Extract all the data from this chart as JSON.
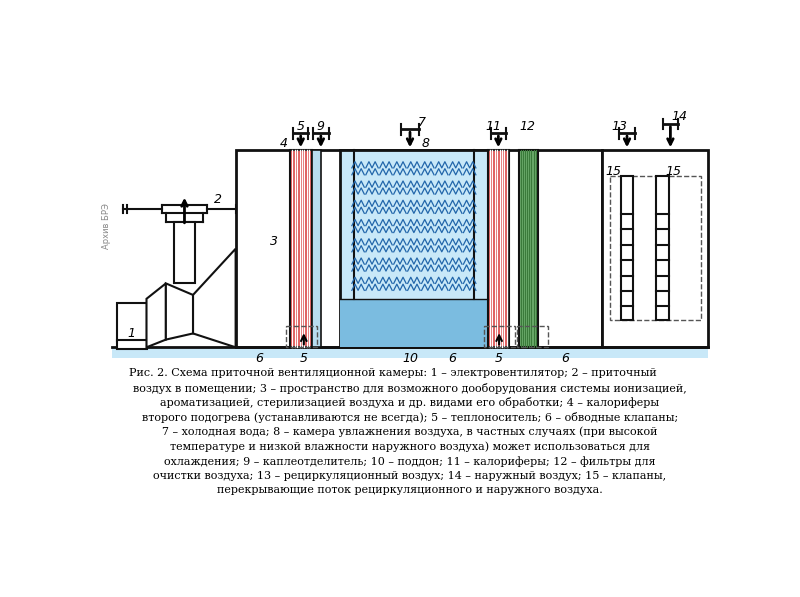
{
  "bg_color": "#ffffff",
  "caption_lines": [
    "Рис. 2. Схема приточной вентиляционной камеры: 1 – электровентилятор; 2 – приточный",
    "воздух в помещении; 3 – пространство для возможного дооборудования системы ионизацией,",
    "ароматизацией, стерилизацией воздуха и др. видами его обработки; 4 – калориферы",
    "второго подогрева (устанавливаются не всегда); 5 – теплоноситель; 6 – обводные клапаны;",
    "7 – холодная вода; 8 – камера увлажнения воздуха, в частных случаях (при высокой",
    "температуре и низкой влажности наружного воздуха) может использоваться для",
    "охлаждения; 9 – каплеотделитель; 10 – поддон; 11 – калориферы; 12 – фильтры для",
    "очистки воздуха; 13 – рециркуляционный воздух; 14 – наружный воздух; 15 – клапаны,",
    "перекрывающие поток рециркуляционного и наружного воздуха."
  ],
  "red_color": "#d94040",
  "light_blue": "#b8ddf0",
  "blue_water": "#7bbce0",
  "blue_hum": "#c8e8f8",
  "green_color": "#6aaa6a",
  "dark_color": "#111111",
  "dashed_color": "#555555",
  "stripe_white": "#ffffff",
  "green_stripe": "#3a7a3a"
}
